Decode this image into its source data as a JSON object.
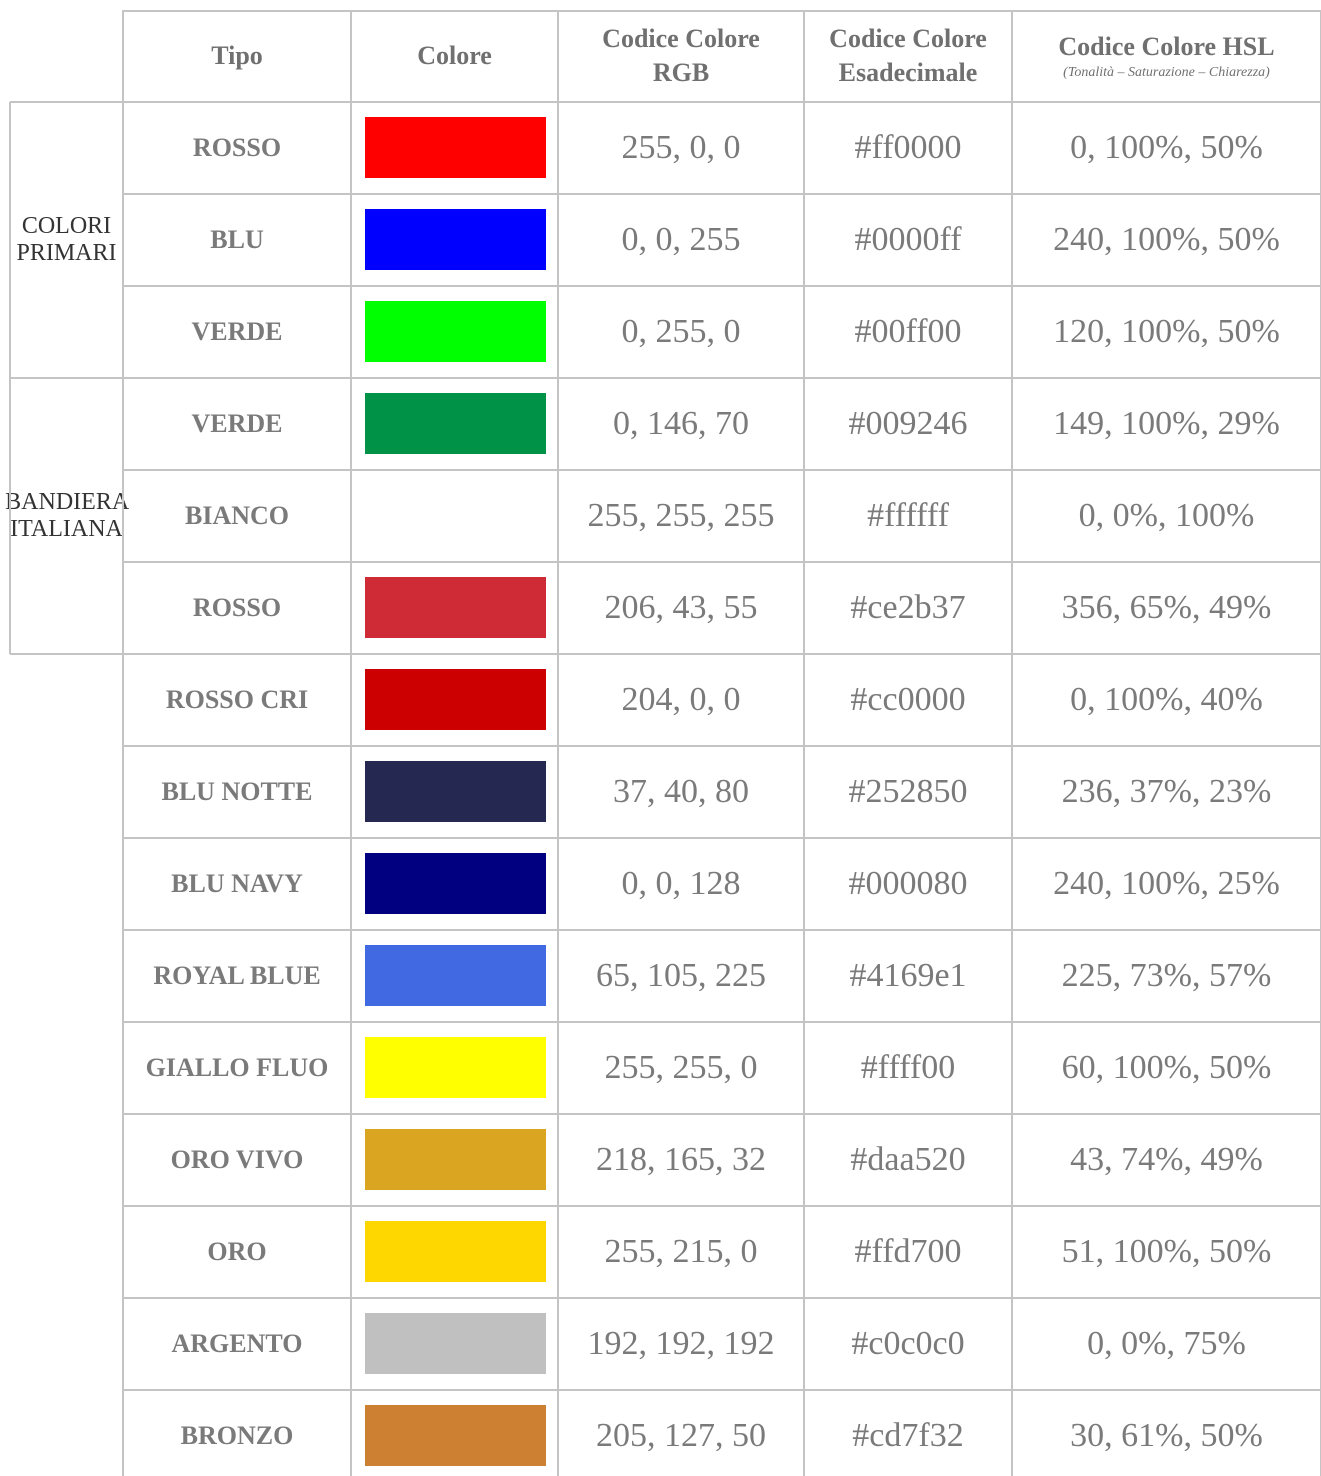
{
  "header": {
    "columns": [
      "Tipo",
      "Colore",
      "Codice Colore RGB",
      "Codice Colore Esadecimale",
      "Codice Colore HSL"
    ],
    "hsl_note": "(Tonalità – Saturazione – Chiarezza)"
  },
  "groups": [
    {
      "label": "COLORI PRIMARI",
      "rows": [
        {
          "tipo": "ROSSO",
          "rgb": "255, 0, 0",
          "hex": "#ff0000",
          "hsl": "0, 100%, 50%"
        },
        {
          "tipo": "BLU",
          "rgb": "0, 0, 255",
          "hex": "#0000ff",
          "hsl": "240, 100%, 50%"
        },
        {
          "tipo": "VERDE",
          "rgb": "0, 255, 0",
          "hex": "#00ff00",
          "hsl": "120, 100%, 50%"
        }
      ]
    },
    {
      "label": "BANDIERA ITALIANA",
      "rows": [
        {
          "tipo": "VERDE",
          "rgb": "0, 146, 70",
          "hex": "#009246",
          "hsl": "149, 100%, 29%"
        },
        {
          "tipo": "BIANCO",
          "rgb": "255, 255, 255",
          "hex": "#ffffff",
          "hsl": "0, 0%, 100%"
        },
        {
          "tipo": "ROSSO",
          "rgb": "206, 43, 55",
          "hex": "#ce2b37",
          "hsl": "356, 65%, 49%"
        }
      ]
    },
    {
      "rows": [
        {
          "tipo": "ROSSO CRI",
          "rgb": "204, 0, 0",
          "hex": "#cc0000",
          "hsl": "0, 100%, 40%"
        },
        {
          "tipo": "BLU NOTTE",
          "rgb": "37, 40, 80",
          "hex": "#252850",
          "hsl": "236, 37%, 23%"
        },
        {
          "tipo": "BLU NAVY",
          "rgb": "0, 0, 128",
          "hex": "#000080",
          "hsl": "240, 100%, 25%"
        },
        {
          "tipo": "ROYAL BLUE",
          "rgb": "65, 105, 225",
          "hex": "#4169e1",
          "hsl": "225, 73%, 57%"
        },
        {
          "tipo": "GIALLO FLUO",
          "rgb": "255, 255, 0",
          "hex": "#ffff00",
          "hsl": "60, 100%, 50%"
        },
        {
          "tipo": "ORO VIVO",
          "rgb": "218, 165, 32",
          "hex": "#daa520",
          "hsl": "43, 74%, 49%"
        },
        {
          "tipo": "ORO",
          "rgb": "255, 215, 0",
          "hex": "#ffd700",
          "hsl": "51, 100%, 50%"
        },
        {
          "tipo": "ARGENTO",
          "rgb": "192, 192, 192",
          "hex": "#c0c0c0",
          "hsl": "0, 0%, 75%"
        },
        {
          "tipo": "BRONZO",
          "rgb": "205, 127, 50",
          "hex": "#cd7f32",
          "hsl": "30, 61%, 50%"
        }
      ]
    }
  ]
}
